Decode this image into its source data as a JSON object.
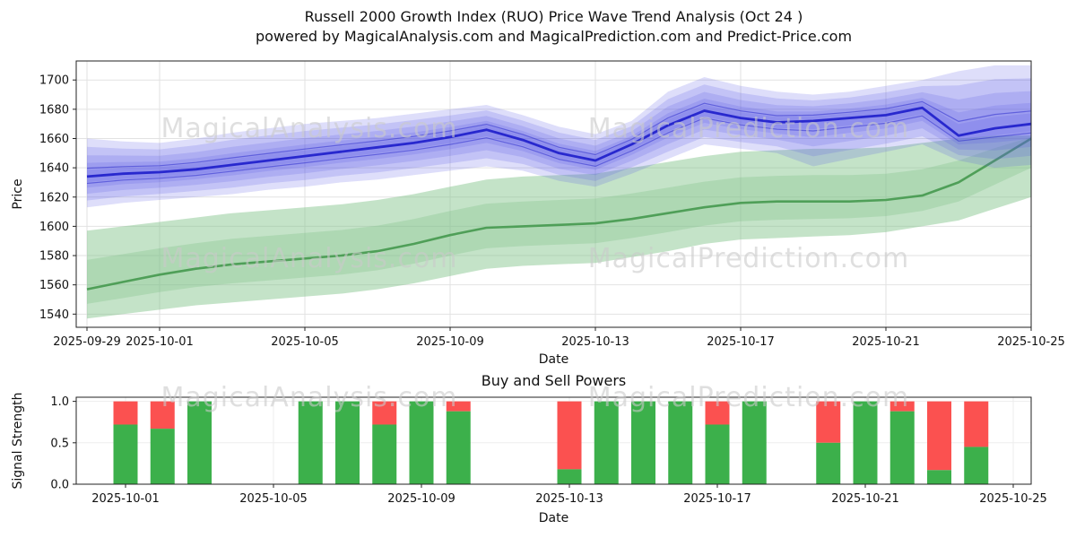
{
  "header": {
    "title_line1": "Russell 2000 Growth Index (RUO) Price Wave Trend Analysis (Oct 24 )",
    "title_line2": "powered by MagicalAnalysis.com and MagicalPrediction.com and Predict-Price.com"
  },
  "watermarks": {
    "texts": [
      "MagicalAnalysis.com",
      "MagicalPrediction.com"
    ],
    "color": "#c9c9c9",
    "opacity": 0.6
  },
  "chart_data": [
    {
      "type": "area",
      "title": "",
      "xlabel": "Date",
      "ylabel": "Price",
      "ylim": [
        1531,
        1713
      ],
      "yticks": [
        1540,
        1560,
        1580,
        1600,
        1620,
        1640,
        1660,
        1680,
        1700
      ],
      "xtick_labels": [
        "2025-09-29",
        "2025-10-01",
        "2025-10-05",
        "2025-10-09",
        "2025-10-13",
        "2025-10-17",
        "2025-10-21",
        "2025-10-25"
      ],
      "xtick_day_index": [
        0,
        2,
        6,
        10,
        14,
        18,
        22,
        26
      ],
      "grid": true,
      "legend": "none",
      "dates": [
        "2025-09-29",
        "2025-09-30",
        "2025-10-01",
        "2025-10-02",
        "2025-10-03",
        "2025-10-04",
        "2025-10-05",
        "2025-10-06",
        "2025-10-07",
        "2025-10-08",
        "2025-10-09",
        "2025-10-10",
        "2025-10-11",
        "2025-10-12",
        "2025-10-13",
        "2025-10-14",
        "2025-10-15",
        "2025-10-16",
        "2025-10-17",
        "2025-10-18",
        "2025-10-19",
        "2025-10-20",
        "2025-10-21",
        "2025-10-22",
        "2025-10-23",
        "2025-10-24",
        "2025-10-25"
      ],
      "series": [
        {
          "name": "forecast-upper-band",
          "values": [
            1660,
            1658,
            1657,
            1660,
            1664,
            1667,
            1670,
            1672,
            1674,
            1677,
            1680,
            1683,
            1676,
            1668,
            1663,
            1672,
            1692,
            1702,
            1696,
            1692,
            1690,
            1692,
            1696,
            1700,
            1706,
            1710,
            1710
          ]
        },
        {
          "name": "forecast-center",
          "values": [
            1634,
            1636,
            1637,
            1639,
            1642,
            1645,
            1648,
            1651,
            1654,
            1657,
            1661,
            1666,
            1659,
            1650,
            1645,
            1656,
            1669,
            1679,
            1674,
            1671,
            1672,
            1674,
            1676,
            1681,
            1662,
            1667,
            1670
          ]
        },
        {
          "name": "forecast-lower-band",
          "values": [
            1613,
            1616,
            1618,
            1620,
            1622,
            1625,
            1627,
            1630,
            1632,
            1635,
            1638,
            1641,
            1638,
            1631,
            1627,
            1636,
            1646,
            1656,
            1653,
            1650,
            1641,
            1646,
            1651,
            1656,
            1645,
            1640,
            1642
          ]
        },
        {
          "name": "trend-upper-band",
          "values": [
            1597,
            1600,
            1603,
            1606,
            1609,
            1611,
            1613,
            1615,
            1618,
            1622,
            1627,
            1632,
            1634,
            1635,
            1636,
            1640,
            1644,
            1648,
            1651,
            1652,
            1653,
            1653,
            1654,
            1657,
            1660,
            1662,
            1662
          ]
        },
        {
          "name": "trend-center",
          "values": [
            1557,
            1562,
            1567,
            1571,
            1574,
            1576,
            1578,
            1580,
            1583,
            1588,
            1594,
            1599,
            1600,
            1601,
            1602,
            1605,
            1609,
            1613,
            1616,
            1617,
            1617,
            1617,
            1618,
            1621,
            1630,
            1645,
            1660
          ]
        },
        {
          "name": "trend-lower-band",
          "values": [
            1537,
            1540,
            1543,
            1546,
            1548,
            1550,
            1552,
            1554,
            1557,
            1561,
            1566,
            1571,
            1573,
            1574,
            1575,
            1579,
            1583,
            1588,
            1591,
            1592,
            1593,
            1594,
            1596,
            1600,
            1604,
            1612,
            1620
          ]
        }
      ],
      "colors": {
        "blue_fill": "#5a5ae6",
        "blue_line": "#2323cc",
        "green_fill": "#7cc084",
        "green_line": "#4f9f58"
      }
    },
    {
      "type": "bar",
      "title": "Buy and Sell Powers",
      "xlabel": "Date",
      "ylabel": "Signal Strength",
      "ylim": [
        0,
        1.05
      ],
      "yticks": [
        "0.0",
        "0.5",
        "1.0"
      ],
      "xtick_labels": [
        "2025-10-01",
        "2025-10-05",
        "2025-10-09",
        "2025-10-13",
        "2025-10-17",
        "2025-10-21",
        "2025-10-25"
      ],
      "xtick_day_index": [
        2,
        6,
        10,
        14,
        18,
        22,
        26
      ],
      "stacked": true,
      "bars": [
        {
          "date": "2025-10-01",
          "buy": 0.72,
          "sell": 0.28
        },
        {
          "date": "2025-10-02",
          "buy": 0.67,
          "sell": 0.33
        },
        {
          "date": "2025-10-03",
          "buy": 1.0,
          "sell": 0.0
        },
        {
          "date": "2025-10-06",
          "buy": 1.0,
          "sell": 0.0
        },
        {
          "date": "2025-10-07",
          "buy": 1.0,
          "sell": 0.0
        },
        {
          "date": "2025-10-08",
          "buy": 0.72,
          "sell": 0.28
        },
        {
          "date": "2025-10-09",
          "buy": 1.0,
          "sell": 0.0
        },
        {
          "date": "2025-10-10",
          "buy": 0.88,
          "sell": 0.12
        },
        {
          "date": "2025-10-13",
          "buy": 0.18,
          "sell": 0.82
        },
        {
          "date": "2025-10-14",
          "buy": 1.0,
          "sell": 0.0
        },
        {
          "date": "2025-10-15",
          "buy": 1.0,
          "sell": 0.0
        },
        {
          "date": "2025-10-16",
          "buy": 1.0,
          "sell": 0.0
        },
        {
          "date": "2025-10-17",
          "buy": 0.72,
          "sell": 0.28
        },
        {
          "date": "2025-10-18",
          "buy": 1.0,
          "sell": 0.0
        },
        {
          "date": "2025-10-20",
          "buy": 0.5,
          "sell": 0.5
        },
        {
          "date": "2025-10-21",
          "buy": 1.0,
          "sell": 0.0
        },
        {
          "date": "2025-10-22",
          "buy": 0.88,
          "sell": 0.12
        },
        {
          "date": "2025-10-23",
          "buy": 0.17,
          "sell": 0.83
        },
        {
          "date": "2025-10-24",
          "buy": 0.45,
          "sell": 0.55
        }
      ],
      "colors": {
        "buy": "#3cb04b",
        "sell": "#fb5150"
      }
    }
  ]
}
